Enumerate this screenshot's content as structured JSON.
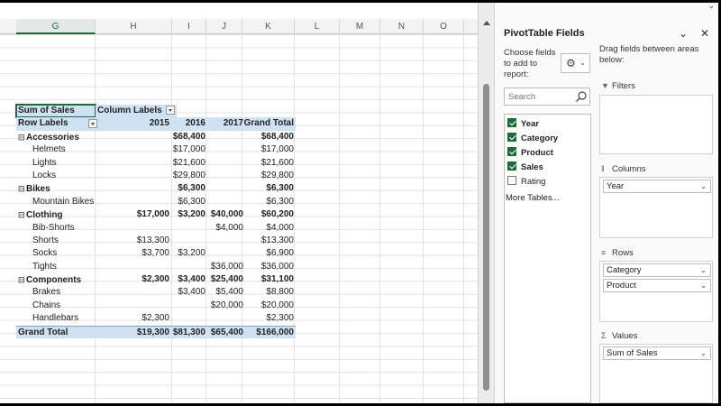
{
  "sheet": {
    "columns": [
      "G",
      "H",
      "I",
      "J",
      "K",
      "L",
      "M",
      "N",
      "O"
    ],
    "selected_column": "G"
  },
  "pivot": {
    "header": {
      "sum_of_sales": "Sum of Sales",
      "column_labels": "Column Labels",
      "row_labels": "Row Labels",
      "y2015": "2015",
      "y2016": "2016",
      "y2017": "2017",
      "grand_total": "Grand Total"
    },
    "rows": [
      {
        "label": "Accessories",
        "group": true,
        "v2015": "",
        "v2016": "$68,400",
        "v2017": "",
        "total": "$68,400"
      },
      {
        "label": "Helmets",
        "group": false,
        "v2015": "",
        "v2016": "$17,000",
        "v2017": "",
        "total": "$17,000"
      },
      {
        "label": "Lights",
        "group": false,
        "v2015": "",
        "v2016": "$21,600",
        "v2017": "",
        "total": "$21,600"
      },
      {
        "label": "Locks",
        "group": false,
        "v2015": "",
        "v2016": "$29,800",
        "v2017": "",
        "total": "$29,800"
      },
      {
        "label": "Bikes",
        "group": true,
        "v2015": "",
        "v2016": "$6,300",
        "v2017": "",
        "total": "$6,300"
      },
      {
        "label": "Mountain Bikes",
        "group": false,
        "v2015": "",
        "v2016": "$6,300",
        "v2017": "",
        "total": "$6,300"
      },
      {
        "label": "Clothing",
        "group": true,
        "v2015": "$17,000",
        "v2016": "$3,200",
        "v2017": "$40,000",
        "total": "$60,200"
      },
      {
        "label": "Bib-Shorts",
        "group": false,
        "v2015": "",
        "v2016": "",
        "v2017": "$4,000",
        "total": "$4,000"
      },
      {
        "label": "Shorts",
        "group": false,
        "v2015": "$13,300",
        "v2016": "",
        "v2017": "",
        "total": "$13,300"
      },
      {
        "label": "Socks",
        "group": false,
        "v2015": "$3,700",
        "v2016": "$3,200",
        "v2017": "",
        "total": "$6,900"
      },
      {
        "label": "Tights",
        "group": false,
        "v2015": "",
        "v2016": "",
        "v2017": "$36,000",
        "total": "$36,000"
      },
      {
        "label": "Components",
        "group": true,
        "v2015": "$2,300",
        "v2016": "$3,400",
        "v2017": "$25,400",
        "total": "$31,100"
      },
      {
        "label": "Brakes",
        "group": false,
        "v2015": "",
        "v2016": "$3,400",
        "v2017": "$5,400",
        "total": "$8,800"
      },
      {
        "label": "Chains",
        "group": false,
        "v2015": "",
        "v2016": "",
        "v2017": "$20,000",
        "total": "$20,000"
      },
      {
        "label": "Handlebars",
        "group": false,
        "v2015": "$2,300",
        "v2016": "",
        "v2017": "",
        "total": "$2,300"
      }
    ],
    "grand": {
      "label": "Grand Total",
      "v2015": "$19,300",
      "v2016": "$81,300",
      "v2017": "$65,400",
      "total": "$166,000"
    }
  },
  "pane": {
    "title": "PivotTable Fields",
    "choose_text": "Choose fields to add to report:",
    "drag_text": "Drag fields between areas below:",
    "search_placeholder": "Search",
    "fields": [
      {
        "name": "Year",
        "checked": true
      },
      {
        "name": "Category",
        "checked": true
      },
      {
        "name": "Product",
        "checked": true
      },
      {
        "name": "Sales",
        "checked": true
      },
      {
        "name": "Rating",
        "checked": false
      }
    ],
    "more_tables": "More Tables...",
    "areas": {
      "filters": {
        "label": "Filters",
        "items": []
      },
      "columns": {
        "label": "Columns",
        "items": [
          "Year"
        ]
      },
      "rows": {
        "label": "Rows",
        "items": [
          "Category",
          "Product"
        ]
      },
      "values": {
        "label": "Values",
        "items": [
          "Sum of Sales"
        ]
      }
    }
  },
  "colors": {
    "accent": "#1d6b3a",
    "pivot_header_fill": "#cfe2f3"
  }
}
